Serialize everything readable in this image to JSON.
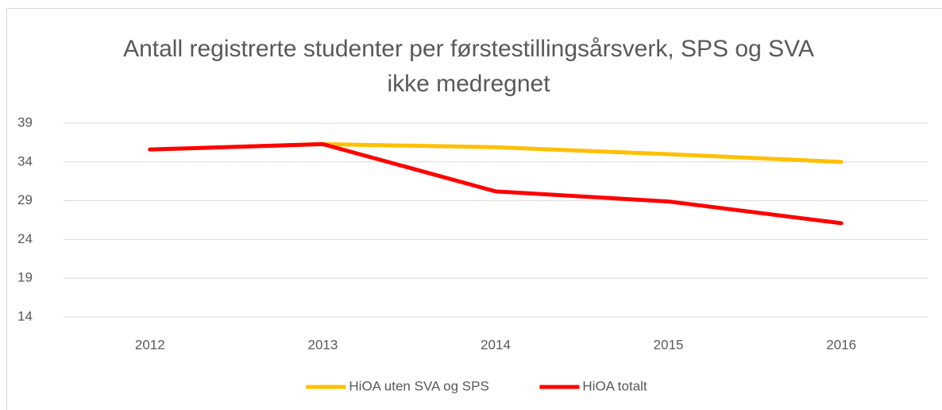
{
  "chart_data": {
    "type": "line",
    "title": "Antall registrerte studenter per førstestillingsårsverk, SPS og SVA ikke medregnet",
    "categories": [
      "2012",
      "2013",
      "2014",
      "2015",
      "2016"
    ],
    "series": [
      {
        "name": "HiOA uten SVA og SPS",
        "color": "#ffc000",
        "values": [
          35.6,
          36.3,
          35.9,
          35.0,
          34.0
        ]
      },
      {
        "name": "HiOA totalt",
        "color": "#ff0000",
        "values": [
          35.6,
          36.3,
          30.2,
          28.9,
          26.1
        ]
      }
    ],
    "ylim": [
      14,
      39
    ],
    "yticks": [
      14,
      19,
      24,
      29,
      34,
      39
    ],
    "grid": true,
    "legend": "bottom"
  }
}
